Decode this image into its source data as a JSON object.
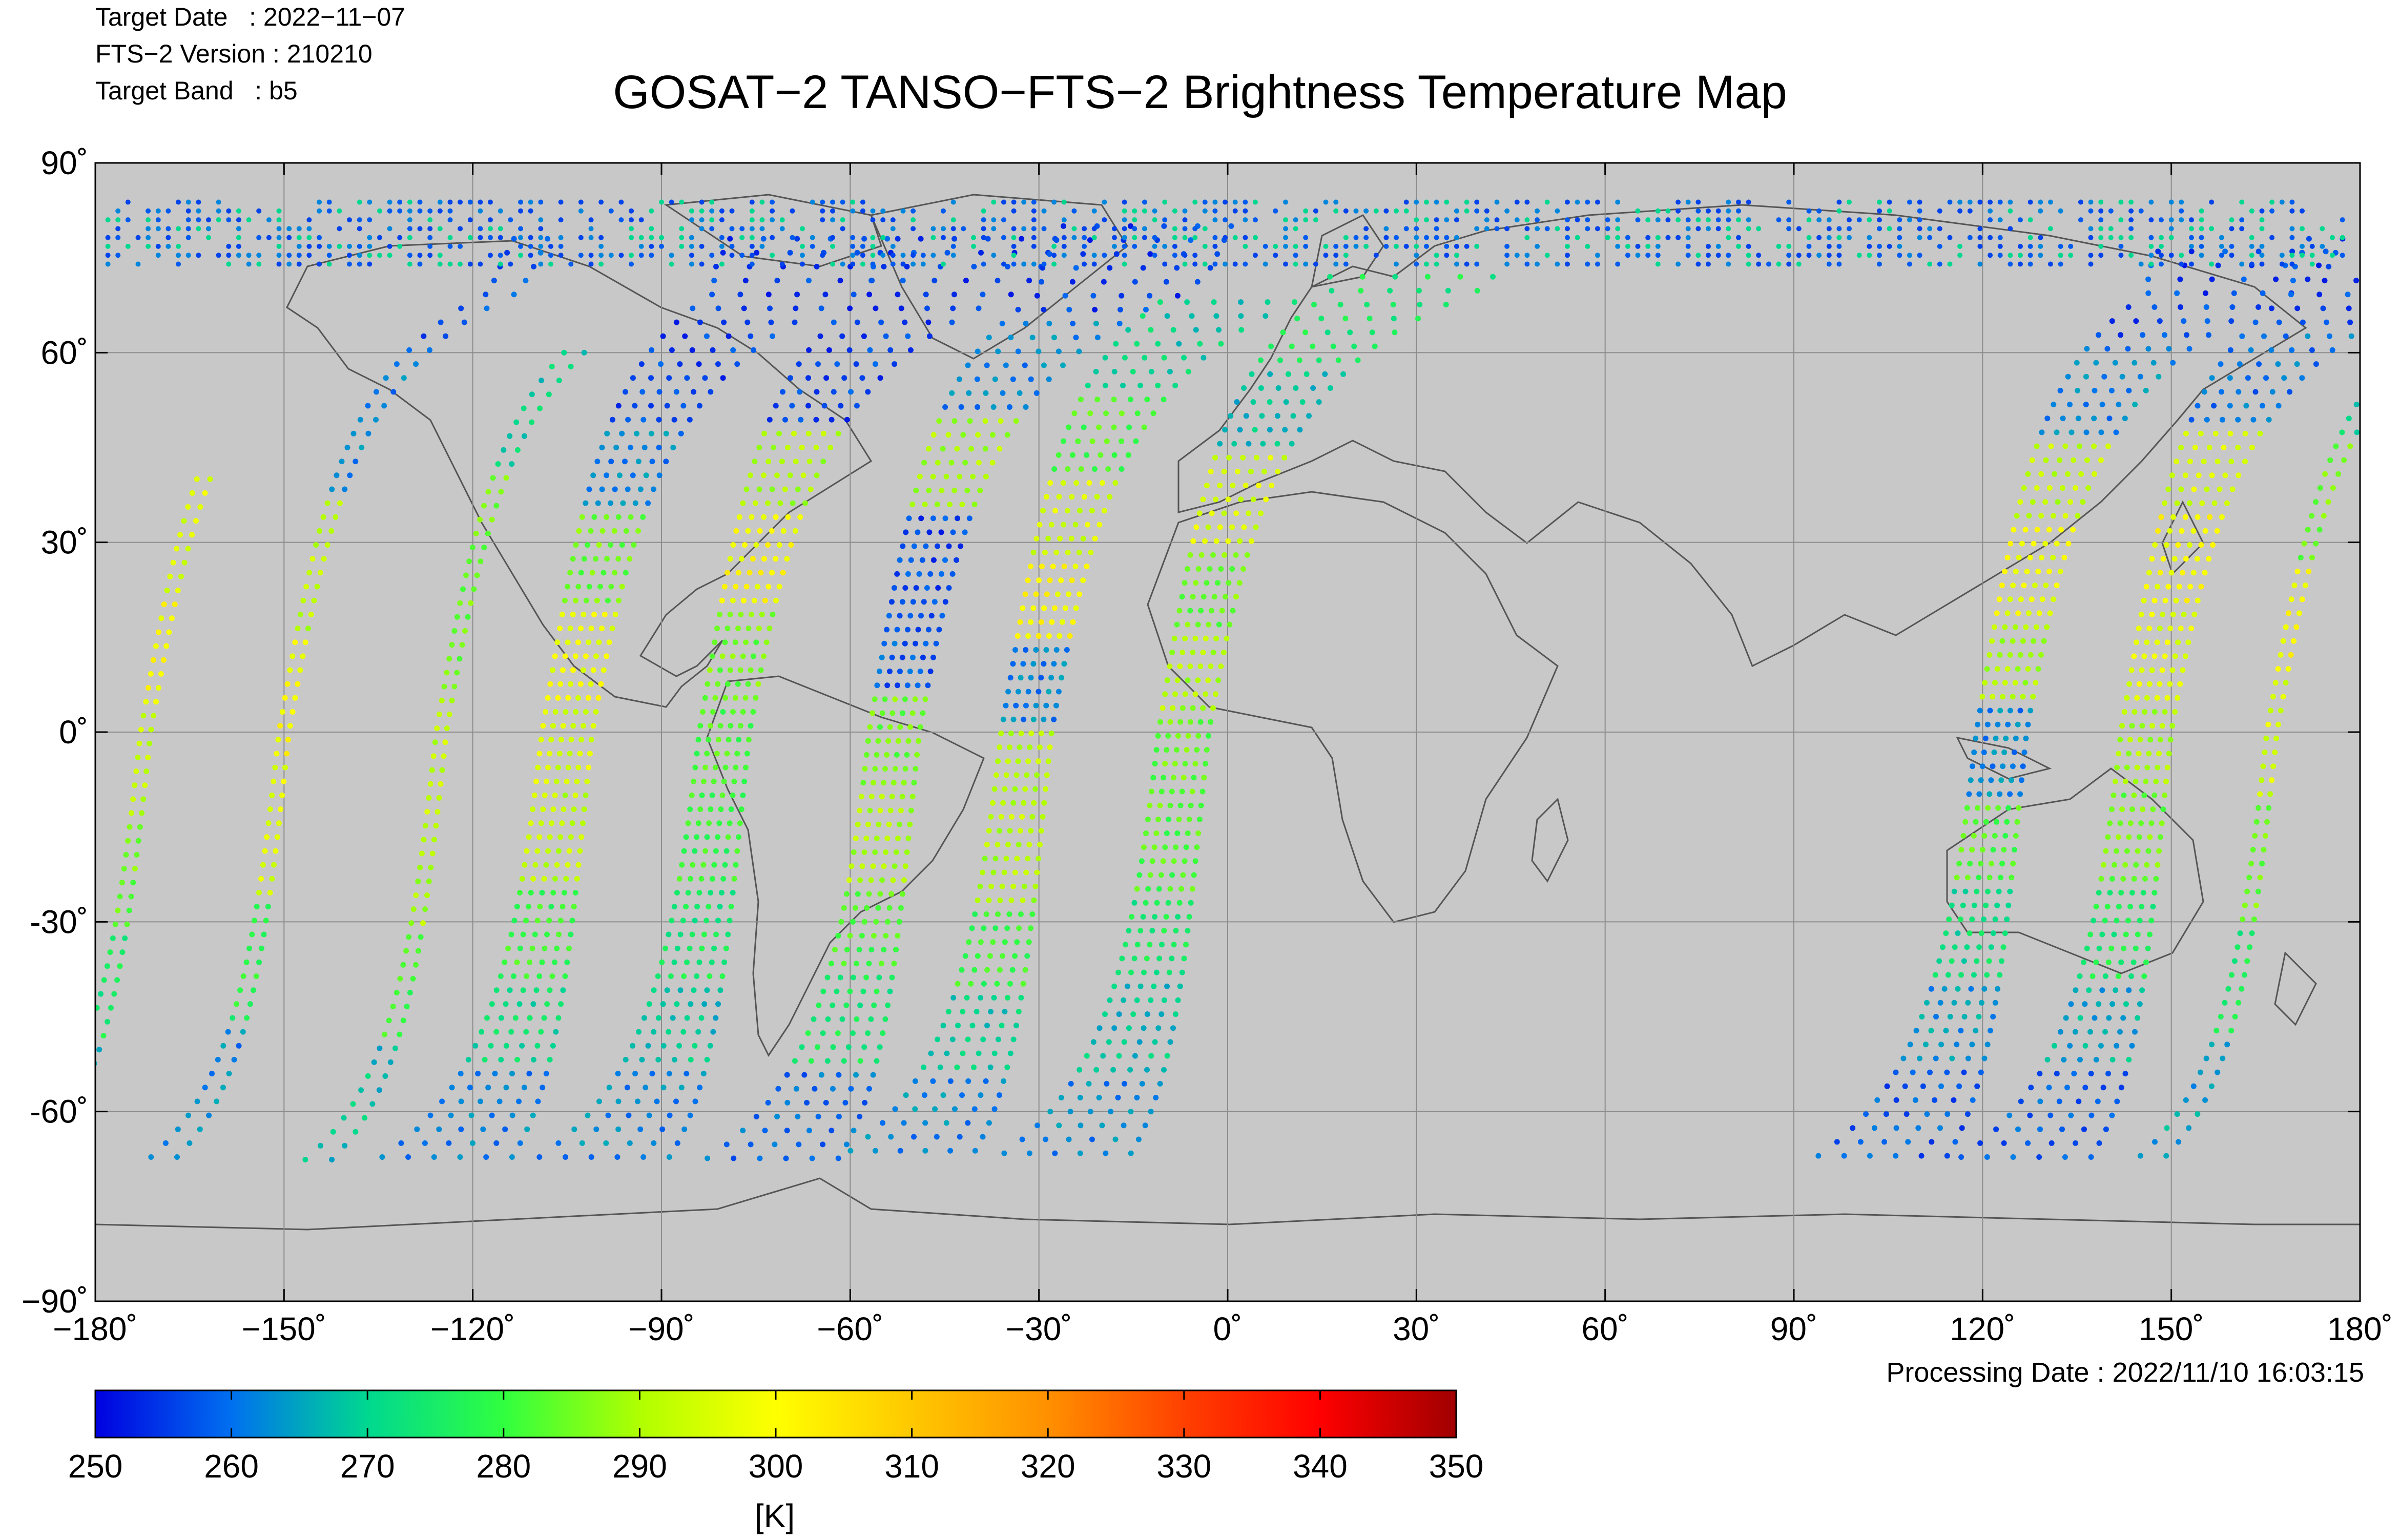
{
  "header": {
    "target_date": "Target Date   : 2022−11−07",
    "fts_version": "FTS−2 Version : 210210",
    "target_band": "Target Band   : b5"
  },
  "title": "GOSAT−2 TANSO−FTS−2 Brightness Temperature Map",
  "processing_date": "Processing Date : 2022/11/10 16:03:15",
  "map": {
    "projection": "equirectangular",
    "lon_range": [
      -180,
      180
    ],
    "lat_range": [
      -90,
      90
    ],
    "background_color": "#c8c8c8",
    "coastline_color": "#555555",
    "gridline_color": "#8c8c8c",
    "x_ticks": [
      {
        "value": -180,
        "label": "−180˚"
      },
      {
        "value": -150,
        "label": "−150˚"
      },
      {
        "value": -120,
        "label": "−120˚"
      },
      {
        "value": -90,
        "label": "−90˚"
      },
      {
        "value": -60,
        "label": "−60˚"
      },
      {
        "value": -30,
        "label": "−30˚"
      },
      {
        "value": 0,
        "label": "0˚"
      },
      {
        "value": 30,
        "label": "30˚"
      },
      {
        "value": 60,
        "label": "60˚"
      },
      {
        "value": 90,
        "label": "90˚"
      },
      {
        "value": 120,
        "label": "120˚"
      },
      {
        "value": 150,
        "label": "150˚"
      },
      {
        "value": 180,
        "label": "180˚"
      }
    ],
    "y_ticks": [
      {
        "value": 90,
        "label": "90˚"
      },
      {
        "value": 60,
        "label": "60˚"
      },
      {
        "value": 30,
        "label": "30˚"
      },
      {
        "value": 0,
        "label": "0˚"
      },
      {
        "value": -30,
        "label": "-30˚"
      },
      {
        "value": -60,
        "label": "-60˚"
      },
      {
        "value": -90,
        "label": "−90˚"
      }
    ],
    "orbit_tracks": [
      {
        "lon_equator": -172,
        "north_lat": 40,
        "south_lat": -68,
        "width": 2,
        "temps": [
          295,
          300,
          292,
          285,
          275,
          265
        ]
      },
      {
        "lon_equator": -150,
        "north_lat": 78,
        "south_lat": -68,
        "width": 2,
        "temps": [
          258,
          262,
          292,
          300,
          296,
          278,
          262
        ]
      },
      {
        "lon_equator": -125,
        "north_lat": 60,
        "south_lat": -68,
        "width": 2,
        "temps": [
          270,
          285,
          285,
          292,
          290,
          280,
          268
        ]
      },
      {
        "lon_equator": -105,
        "north_lat": 78,
        "south_lat": -68,
        "width": 6,
        "temps": [
          256,
          256,
          262,
          285,
          298,
          295,
          292,
          280,
          272,
          262
        ]
      },
      {
        "lon_equator": -80,
        "north_lat": 78,
        "south_lat": -68,
        "width": 6,
        "temps": [
          256,
          256,
          290,
          300,
          285,
          282,
          280,
          275,
          268,
          262
        ]
      },
      {
        "lon_equator": -53,
        "north_lat": 80,
        "south_lat": -68,
        "width": 6,
        "temps": [
          256,
          262,
          290,
          256,
          258,
          285,
          290,
          282,
          275,
          260
        ]
      },
      {
        "lon_equator": -32,
        "north_lat": 68,
        "south_lat": -68,
        "width": 6,
        "temps": [
          270,
          282,
          295,
          300,
          262,
          292,
          290,
          280,
          270,
          262
        ]
      },
      {
        "lon_equator": -7,
        "north_lat": 72,
        "south_lat": -68,
        "width": 6,
        "temps": [
          275,
          268,
          295,
          285,
          290,
          284,
          282,
          275,
          268,
          262
        ]
      },
      {
        "lon_equator": 123,
        "north_lat": 76,
        "south_lat": -68,
        "width": 6,
        "temps": [
          256,
          262,
          292,
          298,
          290,
          262,
          282,
          272,
          264,
          258
        ]
      },
      {
        "lon_equator": 146,
        "north_lat": 78,
        "south_lat": -68,
        "width": 6,
        "temps": [
          256,
          260,
          295,
          300,
          296,
          290,
          285,
          276,
          266,
          258
        ]
      },
      {
        "lon_equator": 166,
        "north_lat": 65,
        "south_lat": -68,
        "width": 2,
        "temps": [
          270,
          285,
          300,
          295,
          285,
          275,
          265
        ]
      }
    ],
    "polar_band": {
      "lat_min": 74,
      "lat_max": 84,
      "temps": [
        256,
        258,
        262,
        270
      ]
    }
  },
  "colorbar": {
    "min": 250,
    "max": 350,
    "tick_values": [
      250,
      260,
      270,
      280,
      290,
      300,
      310,
      320,
      330,
      340,
      350
    ],
    "tick_labels": [
      "250",
      "260",
      "270",
      "280",
      "290",
      "300",
      "310",
      "320",
      "330",
      "340",
      "350"
    ],
    "unit": "[K]",
    "colors": [
      "#0000ff",
      "#0090ff",
      "#00ff80",
      "#80ff00",
      "#ffff00",
      "#ffc000",
      "#ff8000",
      "#ff0000",
      "#a00000"
    ]
  }
}
